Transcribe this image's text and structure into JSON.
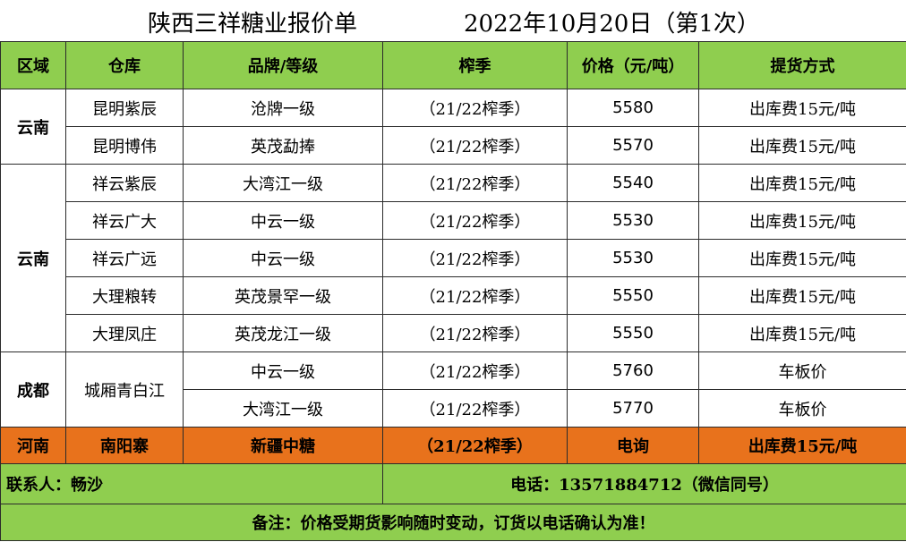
{
  "header": {
    "title": "陕西三祥糖业报价单",
    "date": "2022年10月20日（第1次）"
  },
  "columns": [
    "区域",
    "仓库",
    "品牌/等级",
    "榨季",
    "价格（元/吨）",
    "提货方式"
  ],
  "groups": {
    "g1": {
      "region": "云南",
      "rows": [
        {
          "warehouse": "昆明紫辰",
          "brand": "沧牌一级",
          "season": "（21/22榨季）",
          "price": "5580",
          "delivery": "出库费15元/吨"
        },
        {
          "warehouse": "昆明博伟",
          "brand": "英茂勐捧",
          "season": "（21/22榨季）",
          "price": "5570",
          "delivery": "出库费15元/吨"
        }
      ]
    },
    "g2": {
      "region": "云南",
      "rows": [
        {
          "warehouse": "祥云紫辰",
          "brand": "大湾江一级",
          "season": "（21/22榨季）",
          "price": "5540",
          "delivery": "出库费15元/吨"
        },
        {
          "warehouse": "祥云广大",
          "brand": "中云一级",
          "season": "（21/22榨季）",
          "price": "5530",
          "delivery": "出库费15元/吨"
        },
        {
          "warehouse": "祥云广远",
          "brand": "中云一级",
          "season": "（21/22榨季）",
          "price": "5530",
          "delivery": "出库费15元/吨"
        },
        {
          "warehouse": "大理粮转",
          "brand": "英茂景罕一级",
          "season": "（21/22榨季）",
          "price": "5550",
          "delivery": "出库费15元/吨"
        },
        {
          "warehouse": "大理凤庄",
          "brand": "英茂龙江一级",
          "season": "（21/22榨季）",
          "price": "5550",
          "delivery": "出库费15元/吨"
        }
      ]
    },
    "g3": {
      "region": "成都",
      "warehouse": "城厢青白江",
      "rows": [
        {
          "brand": "中云一级",
          "season": "（21/22榨季）",
          "price": "5760",
          "delivery": "车板价"
        },
        {
          "brand": "大湾江一级",
          "season": "（21/22榨季）",
          "price": "5770",
          "delivery": "车板价"
        }
      ]
    },
    "g4": {
      "region": "河南",
      "warehouse": "南阳寨",
      "brand": "新疆中糖",
      "season": "（21/22榨季）",
      "price": "电询",
      "delivery": "出库费15元/吨"
    }
  },
  "contact": {
    "person": "联系人：畅沙",
    "phone": "电话：13571884712（微信同号）"
  },
  "note": "备注：价格受期货影响随时变动，订货以电话确认为准！"
}
